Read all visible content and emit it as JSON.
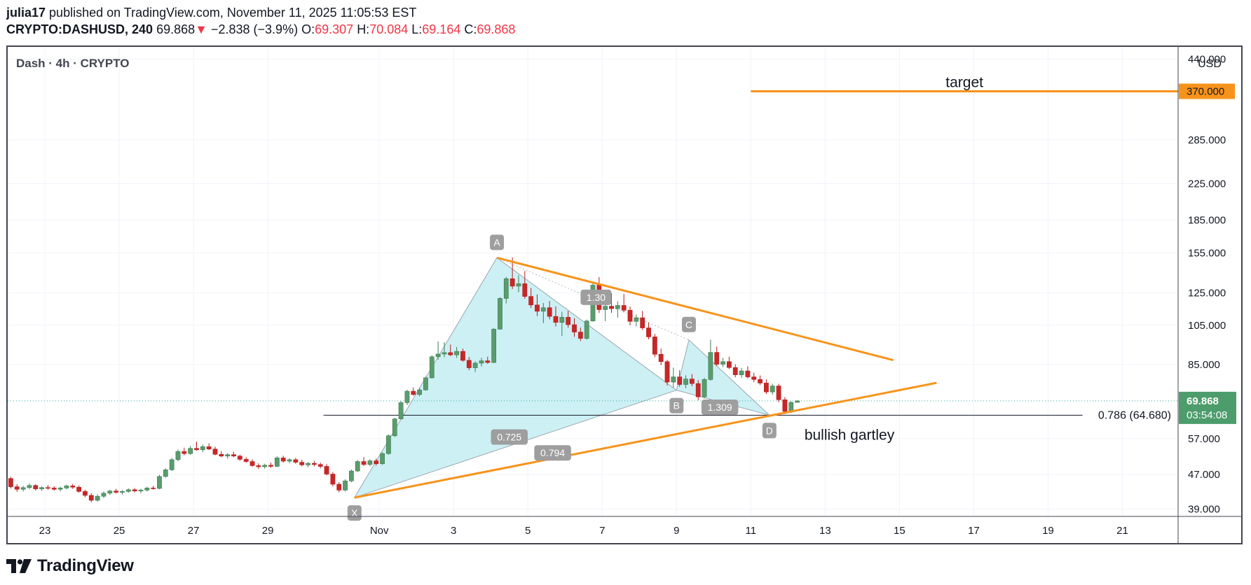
{
  "header": {
    "author": "julia17",
    "published_text": "published on TradingView.com, November 11, 2025 11:05:53 EST",
    "symbol": "CRYPTO:DASHUSD, 240",
    "last": "69.868",
    "change_arrow": "▼",
    "change": "−2.838 (−3.9%)",
    "o_label": "O:",
    "o_value": "69.307",
    "h_label": "H:",
    "h_value": "70.084",
    "l_label": "L:",
    "l_value": "69.164",
    "c_label": "C:",
    "c_value": "69.868"
  },
  "footer": {
    "logo_text": "TradingView"
  },
  "colors": {
    "up": "#26a69a",
    "up_fill": "#5b9c6d",
    "down": "#ef5350",
    "down_fill": "#c62828",
    "orange": "#f7931a",
    "pattern_fill": "#cdf0f5",
    "grid": "#f0f3fa",
    "axis_text": "#131722",
    "price_badge": "#4c9c6c",
    "label_badge": "#9e9e9e"
  },
  "chart_data": {
    "type": "candlestick",
    "title": "Dash · 4h · CRYPTO",
    "currency": "USD",
    "y_scale": "log",
    "ylim": [
      37.5,
      470
    ],
    "xlim": [
      "2025-10-22T00:00",
      "2025-11-22T12:00"
    ],
    "x_ticks": [
      {
        "label": "23",
        "date": "2025-10-23"
      },
      {
        "label": "25",
        "date": "2025-10-25"
      },
      {
        "label": "27",
        "date": "2025-10-27"
      },
      {
        "label": "29",
        "date": "2025-10-29"
      },
      {
        "label": "Nov",
        "date": "2025-11-01"
      },
      {
        "label": "3",
        "date": "2025-11-03"
      },
      {
        "label": "5",
        "date": "2025-11-05"
      },
      {
        "label": "7",
        "date": "2025-11-07"
      },
      {
        "label": "9",
        "date": "2025-11-09"
      },
      {
        "label": "11",
        "date": "2025-11-11"
      },
      {
        "label": "13",
        "date": "2025-11-13"
      },
      {
        "label": "15",
        "date": "2025-11-15"
      },
      {
        "label": "17",
        "date": "2025-11-17"
      },
      {
        "label": "19",
        "date": "2025-11-19"
      },
      {
        "label": "21",
        "date": "2025-11-21"
      }
    ],
    "y_ticks": [
      {
        "label": "440.000",
        "value": 440
      },
      {
        "label": "285.000",
        "value": 285
      },
      {
        "label": "225.000",
        "value": 225
      },
      {
        "label": "185.000",
        "value": 185
      },
      {
        "label": "155.000",
        "value": 155
      },
      {
        "label": "125.000",
        "value": 125
      },
      {
        "label": "105.000",
        "value": 105
      },
      {
        "label": "85.000",
        "value": 85
      },
      {
        "label": "57.000",
        "value": 57
      },
      {
        "label": "47.000",
        "value": 47
      },
      {
        "label": "39.000",
        "value": 39
      }
    ],
    "last_price": {
      "label": "69.868",
      "countdown": "03:54:08",
      "value": 69.868
    },
    "target_level": {
      "label": "370.000",
      "text": "target",
      "value": 370,
      "from": "2025-11-11T00:00"
    },
    "fib_level": {
      "text": "0.786 (64.680)",
      "value": 64.68,
      "from": "2025-10-30T12:00"
    },
    "pattern": {
      "name": "bullish gartley",
      "points": [
        {
          "label": "X",
          "date": "2025-10-31T08:00",
          "price": 41.5
        },
        {
          "label": "A",
          "date": "2025-11-04T04:00",
          "price": 151
        },
        {
          "label": "B",
          "date": "2025-11-09T00:00",
          "price": 74
        },
        {
          "label": "C",
          "date": "2025-11-09T08:00",
          "price": 97
        },
        {
          "label": "D",
          "date": "2025-11-11T12:00",
          "price": 64.7
        }
      ],
      "ratios": [
        {
          "text": "0.725",
          "date": "2025-11-04T12:00",
          "price": 57.5
        },
        {
          "text": "0.794",
          "date": "2025-11-05T16:00",
          "price": 52.8
        },
        {
          "text": "1.309",
          "date": "2025-11-10T04:00",
          "price": 67.5
        },
        {
          "text": "1.30",
          "date": "2025-11-06T20:00",
          "price": 122
        }
      ]
    },
    "trendlines": [
      {
        "from": {
          "date": "2025-11-04T04:00",
          "price": 151
        },
        "to": {
          "date": "2025-11-14T20:00",
          "price": 87
        }
      },
      {
        "from": {
          "date": "2025-10-31T08:00",
          "price": 41.5
        },
        "to": {
          "date": "2025-11-16T00:00",
          "price": 77
        }
      }
    ],
    "candles_start": "2025-10-22T00:00",
    "candle_hours": 4,
    "candles": [
      [
        46.0,
        46.4,
        43.6,
        44.0
      ],
      [
        44.0,
        44.6,
        42.8,
        43.4
      ],
      [
        43.4,
        44.2,
        42.9,
        43.8
      ],
      [
        43.8,
        44.8,
        43.4,
        44.3
      ],
      [
        44.3,
        44.6,
        43.1,
        43.5
      ],
      [
        43.5,
        44.1,
        43.0,
        43.8
      ],
      [
        43.8,
        44.4,
        43.3,
        43.7
      ],
      [
        43.7,
        44.1,
        43.1,
        43.4
      ],
      [
        43.4,
        44.0,
        42.9,
        43.7
      ],
      [
        43.7,
        44.5,
        43.4,
        44.2
      ],
      [
        44.2,
        44.7,
        43.5,
        43.9
      ],
      [
        43.9,
        44.3,
        42.6,
        42.9
      ],
      [
        42.9,
        43.3,
        41.6,
        42.0
      ],
      [
        42.0,
        42.5,
        40.5,
        40.9
      ],
      [
        40.9,
        42.2,
        40.6,
        41.8
      ],
      [
        41.8,
        42.9,
        41.4,
        42.5
      ],
      [
        42.5,
        43.3,
        42.1,
        43.0
      ],
      [
        43.0,
        43.5,
        42.4,
        42.7
      ],
      [
        42.7,
        43.2,
        42.2,
        42.9
      ],
      [
        42.9,
        43.6,
        42.6,
        43.3
      ],
      [
        43.3,
        43.7,
        42.7,
        43.0
      ],
      [
        43.0,
        43.5,
        42.5,
        43.2
      ],
      [
        43.2,
        44.0,
        42.9,
        43.7
      ],
      [
        43.7,
        44.2,
        43.3,
        43.6
      ],
      [
        43.6,
        46.9,
        43.4,
        46.5
      ],
      [
        46.5,
        48.6,
        46.2,
        48.2
      ],
      [
        48.2,
        51.4,
        47.9,
        50.9
      ],
      [
        50.9,
        53.8,
        50.5,
        53.2
      ],
      [
        53.2,
        54.3,
        52.1,
        52.6
      ],
      [
        52.6,
        54.8,
        52.2,
        54.1
      ],
      [
        54.1,
        56.1,
        53.4,
        53.7
      ],
      [
        53.7,
        55.2,
        53.0,
        54.6
      ],
      [
        54.6,
        55.6,
        53.6,
        53.9
      ],
      [
        53.9,
        54.6,
        52.1,
        52.4
      ],
      [
        52.4,
        53.3,
        51.6,
        51.9
      ],
      [
        51.9,
        52.7,
        51.2,
        52.3
      ],
      [
        52.3,
        53.1,
        51.6,
        51.9
      ],
      [
        51.9,
        52.3,
        50.6,
        51.0
      ],
      [
        51.0,
        51.6,
        50.1,
        50.4
      ],
      [
        50.4,
        51.0,
        49.0,
        49.3
      ],
      [
        49.3,
        49.9,
        48.4,
        49.0
      ],
      [
        49.0,
        49.8,
        48.5,
        49.4
      ],
      [
        49.4,
        50.1,
        48.7,
        49.1
      ],
      [
        49.1,
        51.8,
        48.9,
        51.4
      ],
      [
        51.4,
        52.0,
        50.1,
        50.5
      ],
      [
        50.5,
        51.3,
        49.9,
        50.9
      ],
      [
        50.9,
        51.4,
        49.8,
        50.2
      ],
      [
        50.2,
        50.9,
        49.1,
        49.5
      ],
      [
        49.5,
        50.3,
        48.9,
        49.9
      ],
      [
        49.9,
        50.6,
        49.1,
        49.6
      ],
      [
        49.6,
        50.1,
        48.6,
        49.1
      ],
      [
        49.1,
        49.7,
        46.8,
        47.1
      ],
      [
        47.1,
        47.6,
        44.1,
        44.6
      ],
      [
        44.6,
        45.1,
        42.7,
        43.2
      ],
      [
        43.2,
        45.8,
        42.9,
        45.4
      ],
      [
        45.4,
        48.3,
        45.1,
        47.9
      ],
      [
        47.9,
        50.8,
        47.6,
        50.4
      ],
      [
        50.4,
        51.6,
        49.2,
        49.6
      ],
      [
        49.6,
        51.0,
        49.1,
        50.6
      ],
      [
        50.6,
        51.2,
        49.3,
        49.8
      ],
      [
        49.8,
        53.0,
        49.5,
        52.6
      ],
      [
        52.6,
        58.3,
        52.3,
        57.9
      ],
      [
        57.9,
        63.8,
        57.5,
        63.4
      ],
      [
        63.4,
        69.8,
        63.1,
        69.2
      ],
      [
        69.2,
        74.2,
        68.3,
        73.6
      ],
      [
        73.6,
        75.1,
        71.8,
        72.3
      ],
      [
        72.3,
        74.8,
        71.6,
        74.1
      ],
      [
        74.1,
        79.6,
        73.8,
        79.1
      ],
      [
        79.1,
        89.3,
        78.8,
        88.6
      ],
      [
        88.6,
        96.2,
        87.2,
        89.9
      ],
      [
        89.9,
        95.8,
        88.4,
        90.6
      ],
      [
        90.6,
        94.6,
        88.9,
        89.5
      ],
      [
        89.5,
        93.4,
        88.1,
        91.2
      ],
      [
        91.2,
        92.6,
        86.3,
        86.9
      ],
      [
        86.9,
        88.5,
        82.4,
        83.5
      ],
      [
        83.5,
        86.4,
        81.6,
        85.6
      ],
      [
        85.6,
        88.1,
        84.1,
        86.7
      ],
      [
        86.7,
        88.6,
        85.3,
        85.9
      ],
      [
        85.9,
        103.4,
        85.6,
        102.8
      ],
      [
        102.8,
        122.1,
        102.5,
        121.3
      ],
      [
        121.3,
        136.2,
        118.1,
        134.9
      ],
      [
        134.9,
        151.3,
        127.6,
        129.6
      ],
      [
        129.6,
        137.4,
        125.4,
        131.3
      ],
      [
        131.3,
        140.6,
        121.1,
        122.6
      ],
      [
        122.6,
        128.3,
        115.2,
        117.1
      ],
      [
        117.1,
        123.9,
        110.3,
        113.2
      ],
      [
        113.2,
        118.4,
        106.2,
        115.4
      ],
      [
        115.4,
        119.6,
        108.4,
        110.1
      ],
      [
        110.1,
        116.2,
        104.3,
        106.6
      ],
      [
        106.6,
        112.9,
        99.1,
        109.6
      ],
      [
        109.6,
        113.4,
        103.6,
        105.3
      ],
      [
        105.3,
        109.1,
        98.6,
        101.2
      ],
      [
        101.2,
        103.6,
        96.4,
        97.8
      ],
      [
        97.8,
        108.2,
        97.1,
        107.4
      ],
      [
        107.4,
        132.3,
        107.1,
        130.3
      ],
      [
        130.3,
        136.1,
        112.2,
        114.2
      ],
      [
        114.2,
        121.6,
        107.3,
        116.3
      ],
      [
        116.3,
        124.7,
        112.2,
        114.8
      ],
      [
        114.8,
        119.5,
        109.4,
        116.8
      ],
      [
        116.8,
        124.2,
        112.6,
        113.8
      ],
      [
        113.8,
        116.1,
        104.9,
        107.2
      ],
      [
        107.2,
        111.3,
        104.4,
        109.3
      ],
      [
        109.3,
        113.4,
        102.4,
        103.5
      ],
      [
        103.5,
        106.6,
        97.3,
        98.6
      ],
      [
        98.6,
        100.2,
        88.4,
        89.8
      ],
      [
        89.8,
        92.6,
        84.7,
        86.3
      ],
      [
        86.3,
        87.2,
        75.9,
        77.3
      ],
      [
        77.3,
        83.6,
        75.1,
        79.5
      ],
      [
        79.5,
        82.4,
        75.4,
        76.3
      ],
      [
        76.3,
        80.2,
        74.8,
        78.6
      ],
      [
        78.6,
        80.7,
        75.6,
        76.7
      ],
      [
        76.7,
        78.1,
        70.1,
        71.4
      ],
      [
        71.4,
        79.1,
        70.8,
        78.4
      ],
      [
        78.4,
        97.1,
        77.9,
        90.7
      ],
      [
        90.7,
        93.6,
        84.3,
        85.1
      ],
      [
        85.1,
        88.1,
        83.8,
        86.3
      ],
      [
        86.3,
        88.6,
        82.9,
        83.6
      ],
      [
        83.6,
        85.1,
        79.3,
        80.4
      ],
      [
        80.4,
        83.4,
        79.1,
        82.1
      ],
      [
        82.1,
        84.2,
        78.8,
        79.5
      ],
      [
        79.5,
        81.3,
        77.3,
        78.4
      ],
      [
        78.4,
        80.1,
        76.1,
        76.9
      ],
      [
        76.9,
        78.4,
        72.5,
        73.3
      ],
      [
        73.3,
        76.6,
        72.2,
        75.7
      ],
      [
        75.7,
        76.6,
        69.4,
        70.3
      ],
      [
        70.3,
        71.3,
        65.1,
        66.0
      ],
      [
        66.0,
        69.7,
        65.5,
        69.3
      ],
      [
        69.307,
        70.084,
        69.164,
        69.868
      ]
    ]
  }
}
